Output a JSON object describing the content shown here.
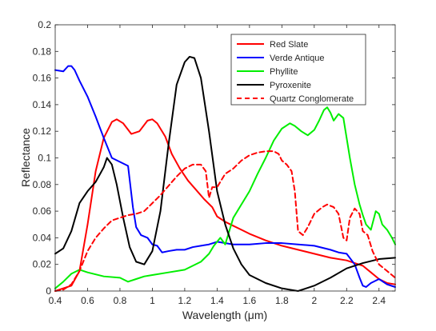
{
  "chart_data": {
    "type": "line",
    "xlabel": "Wavelength (μm)",
    "ylabel": "Reflectance",
    "xlim": [
      0.4,
      2.5
    ],
    "ylim": [
      0,
      0.2
    ],
    "grid": false,
    "legend_position": "top-right",
    "x_ticks": [
      0.4,
      0.6,
      0.8,
      1,
      1.2,
      1.4,
      1.6,
      1.8,
      2,
      2.2,
      2.4
    ],
    "x_tick_labels": [
      "0.4",
      "0.6",
      "0.8",
      "1",
      "1.2",
      "1.4",
      "1.6",
      "1.8",
      "2",
      "2.2",
      "2.4"
    ],
    "y_ticks": [
      0,
      0.02,
      0.04,
      0.06,
      0.08,
      0.1,
      0.12,
      0.14,
      0.16,
      0.18,
      0.2
    ],
    "y_tick_labels": [
      "0",
      "0.02",
      "0.04",
      "0.06",
      "0.08",
      "0.1",
      "0.12",
      "0.14",
      "0.16",
      "0.18",
      "0.2"
    ],
    "series": [
      {
        "name": "Red Slate",
        "color": "#ff0000",
        "dash": "solid",
        "points": [
          [
            0.4,
            0.0
          ],
          [
            0.5,
            0.004
          ],
          [
            0.55,
            0.015
          ],
          [
            0.6,
            0.05
          ],
          [
            0.65,
            0.09
          ],
          [
            0.7,
            0.115
          ],
          [
            0.75,
            0.127
          ],
          [
            0.78,
            0.129
          ],
          [
            0.82,
            0.126
          ],
          [
            0.87,
            0.118
          ],
          [
            0.92,
            0.12
          ],
          [
            0.97,
            0.128
          ],
          [
            1.0,
            0.129
          ],
          [
            1.03,
            0.126
          ],
          [
            1.08,
            0.116
          ],
          [
            1.12,
            0.103
          ],
          [
            1.17,
            0.092
          ],
          [
            1.22,
            0.083
          ],
          [
            1.27,
            0.076
          ],
          [
            1.32,
            0.069
          ],
          [
            1.37,
            0.063
          ],
          [
            1.4,
            0.056
          ],
          [
            1.45,
            0.052
          ],
          [
            1.5,
            0.049
          ],
          [
            1.55,
            0.046
          ],
          [
            1.6,
            0.043
          ],
          [
            1.7,
            0.038
          ],
          [
            1.8,
            0.034
          ],
          [
            1.9,
            0.031
          ],
          [
            2.0,
            0.028
          ],
          [
            2.1,
            0.025
          ],
          [
            2.2,
            0.023
          ],
          [
            2.25,
            0.021
          ],
          [
            2.3,
            0.019
          ],
          [
            2.35,
            0.014
          ],
          [
            2.4,
            0.009
          ],
          [
            2.45,
            0.006
          ],
          [
            2.5,
            0.005
          ]
        ]
      },
      {
        "name": "Verde Antique",
        "color": "#0000ff",
        "dash": "solid",
        "points": [
          [
            0.4,
            0.166
          ],
          [
            0.45,
            0.165
          ],
          [
            0.48,
            0.169
          ],
          [
            0.5,
            0.169
          ],
          [
            0.52,
            0.166
          ],
          [
            0.55,
            0.158
          ],
          [
            0.6,
            0.146
          ],
          [
            0.65,
            0.131
          ],
          [
            0.7,
            0.115
          ],
          [
            0.75,
            0.1
          ],
          [
            0.8,
            0.097
          ],
          [
            0.85,
            0.094
          ],
          [
            0.88,
            0.063
          ],
          [
            0.9,
            0.048
          ],
          [
            0.93,
            0.042
          ],
          [
            0.97,
            0.04
          ],
          [
            1.0,
            0.035
          ],
          [
            1.03,
            0.034
          ],
          [
            1.06,
            0.029
          ],
          [
            1.1,
            0.03
          ],
          [
            1.15,
            0.031
          ],
          [
            1.2,
            0.031
          ],
          [
            1.25,
            0.033
          ],
          [
            1.3,
            0.034
          ],
          [
            1.35,
            0.035
          ],
          [
            1.4,
            0.037
          ],
          [
            1.5,
            0.035
          ],
          [
            1.6,
            0.035
          ],
          [
            1.7,
            0.036
          ],
          [
            1.8,
            0.036
          ],
          [
            1.9,
            0.035
          ],
          [
            2.0,
            0.034
          ],
          [
            2.1,
            0.031
          ],
          [
            2.15,
            0.029
          ],
          [
            2.2,
            0.028
          ],
          [
            2.25,
            0.02
          ],
          [
            2.28,
            0.01
          ],
          [
            2.3,
            0.004
          ],
          [
            2.32,
            0.003
          ],
          [
            2.35,
            0.006
          ],
          [
            2.4,
            0.009
          ],
          [
            2.45,
            0.005
          ],
          [
            2.5,
            0.003
          ]
        ]
      },
      {
        "name": "Phyllite",
        "color": "#00ee00",
        "dash": "solid",
        "points": [
          [
            0.4,
            0.002
          ],
          [
            0.45,
            0.007
          ],
          [
            0.5,
            0.013
          ],
          [
            0.55,
            0.016
          ],
          [
            0.6,
            0.014
          ],
          [
            0.7,
            0.011
          ],
          [
            0.8,
            0.01
          ],
          [
            0.85,
            0.007
          ],
          [
            0.9,
            0.009
          ],
          [
            0.95,
            0.011
          ],
          [
            1.0,
            0.012
          ],
          [
            1.1,
            0.014
          ],
          [
            1.2,
            0.016
          ],
          [
            1.3,
            0.022
          ],
          [
            1.35,
            0.028
          ],
          [
            1.38,
            0.034
          ],
          [
            1.42,
            0.04
          ],
          [
            1.45,
            0.035
          ],
          [
            1.5,
            0.055
          ],
          [
            1.55,
            0.065
          ],
          [
            1.6,
            0.075
          ],
          [
            1.65,
            0.088
          ],
          [
            1.7,
            0.1
          ],
          [
            1.75,
            0.113
          ],
          [
            1.8,
            0.122
          ],
          [
            1.85,
            0.126
          ],
          [
            1.88,
            0.124
          ],
          [
            1.92,
            0.12
          ],
          [
            1.96,
            0.117
          ],
          [
            2.0,
            0.121
          ],
          [
            2.03,
            0.128
          ],
          [
            2.06,
            0.136
          ],
          [
            2.08,
            0.138
          ],
          [
            2.1,
            0.134
          ],
          [
            2.12,
            0.128
          ],
          [
            2.15,
            0.133
          ],
          [
            2.18,
            0.13
          ],
          [
            2.2,
            0.115
          ],
          [
            2.22,
            0.1
          ],
          [
            2.25,
            0.08
          ],
          [
            2.28,
            0.065
          ],
          [
            2.3,
            0.057
          ],
          [
            2.32,
            0.05
          ],
          [
            2.35,
            0.046
          ],
          [
            2.38,
            0.06
          ],
          [
            2.4,
            0.058
          ],
          [
            2.42,
            0.05
          ],
          [
            2.45,
            0.046
          ],
          [
            2.48,
            0.04
          ],
          [
            2.5,
            0.035
          ]
        ]
      },
      {
        "name": "Pyroxenite",
        "color": "#000000",
        "dash": "solid",
        "points": [
          [
            0.4,
            0.028
          ],
          [
            0.45,
            0.032
          ],
          [
            0.5,
            0.045
          ],
          [
            0.55,
            0.066
          ],
          [
            0.6,
            0.075
          ],
          [
            0.65,
            0.082
          ],
          [
            0.7,
            0.093
          ],
          [
            0.72,
            0.1
          ],
          [
            0.75,
            0.095
          ],
          [
            0.78,
            0.08
          ],
          [
            0.82,
            0.055
          ],
          [
            0.86,
            0.033
          ],
          [
            0.9,
            0.022
          ],
          [
            0.95,
            0.02
          ],
          [
            1.0,
            0.03
          ],
          [
            1.05,
            0.06
          ],
          [
            1.1,
            0.11
          ],
          [
            1.15,
            0.155
          ],
          [
            1.2,
            0.172
          ],
          [
            1.23,
            0.176
          ],
          [
            1.26,
            0.175
          ],
          [
            1.3,
            0.16
          ],
          [
            1.35,
            0.12
          ],
          [
            1.4,
            0.075
          ],
          [
            1.45,
            0.05
          ],
          [
            1.5,
            0.032
          ],
          [
            1.55,
            0.02
          ],
          [
            1.6,
            0.012
          ],
          [
            1.7,
            0.006
          ],
          [
            1.8,
            0.002
          ],
          [
            1.85,
            0.001
          ],
          [
            1.9,
            0.0
          ],
          [
            1.95,
            0.002
          ],
          [
            2.0,
            0.004
          ],
          [
            2.1,
            0.01
          ],
          [
            2.2,
            0.017
          ],
          [
            2.3,
            0.021
          ],
          [
            2.4,
            0.024
          ],
          [
            2.5,
            0.025
          ]
        ]
      },
      {
        "name": "Quartz Conglomerate",
        "color": "#ff0000",
        "dash": "dashed",
        "points": [
          [
            0.4,
            0.0
          ],
          [
            0.45,
            0.001
          ],
          [
            0.5,
            0.005
          ],
          [
            0.55,
            0.015
          ],
          [
            0.6,
            0.03
          ],
          [
            0.65,
            0.04
          ],
          [
            0.7,
            0.047
          ],
          [
            0.75,
            0.053
          ],
          [
            0.8,
            0.055
          ],
          [
            0.85,
            0.057
          ],
          [
            0.9,
            0.058
          ],
          [
            0.95,
            0.06
          ],
          [
            1.0,
            0.066
          ],
          [
            1.05,
            0.072
          ],
          [
            1.1,
            0.079
          ],
          [
            1.15,
            0.086
          ],
          [
            1.2,
            0.092
          ],
          [
            1.25,
            0.095
          ],
          [
            1.3,
            0.095
          ],
          [
            1.33,
            0.09
          ],
          [
            1.35,
            0.07
          ],
          [
            1.37,
            0.078
          ],
          [
            1.4,
            0.078
          ],
          [
            1.45,
            0.088
          ],
          [
            1.5,
            0.092
          ],
          [
            1.55,
            0.098
          ],
          [
            1.6,
            0.102
          ],
          [
            1.65,
            0.104
          ],
          [
            1.7,
            0.105
          ],
          [
            1.75,
            0.105
          ],
          [
            1.78,
            0.103
          ],
          [
            1.8,
            0.098
          ],
          [
            1.83,
            0.095
          ],
          [
            1.86,
            0.09
          ],
          [
            1.88,
            0.075
          ],
          [
            1.9,
            0.045
          ],
          [
            1.93,
            0.042
          ],
          [
            1.96,
            0.048
          ],
          [
            2.0,
            0.058
          ],
          [
            2.05,
            0.063
          ],
          [
            2.08,
            0.065
          ],
          [
            2.12,
            0.063
          ],
          [
            2.15,
            0.058
          ],
          [
            2.18,
            0.04
          ],
          [
            2.2,
            0.038
          ],
          [
            2.22,
            0.055
          ],
          [
            2.25,
            0.062
          ],
          [
            2.28,
            0.058
          ],
          [
            2.3,
            0.045
          ],
          [
            2.33,
            0.042
          ],
          [
            2.36,
            0.03
          ],
          [
            2.4,
            0.02
          ],
          [
            2.45,
            0.015
          ],
          [
            2.5,
            0.01
          ]
        ]
      }
    ]
  }
}
